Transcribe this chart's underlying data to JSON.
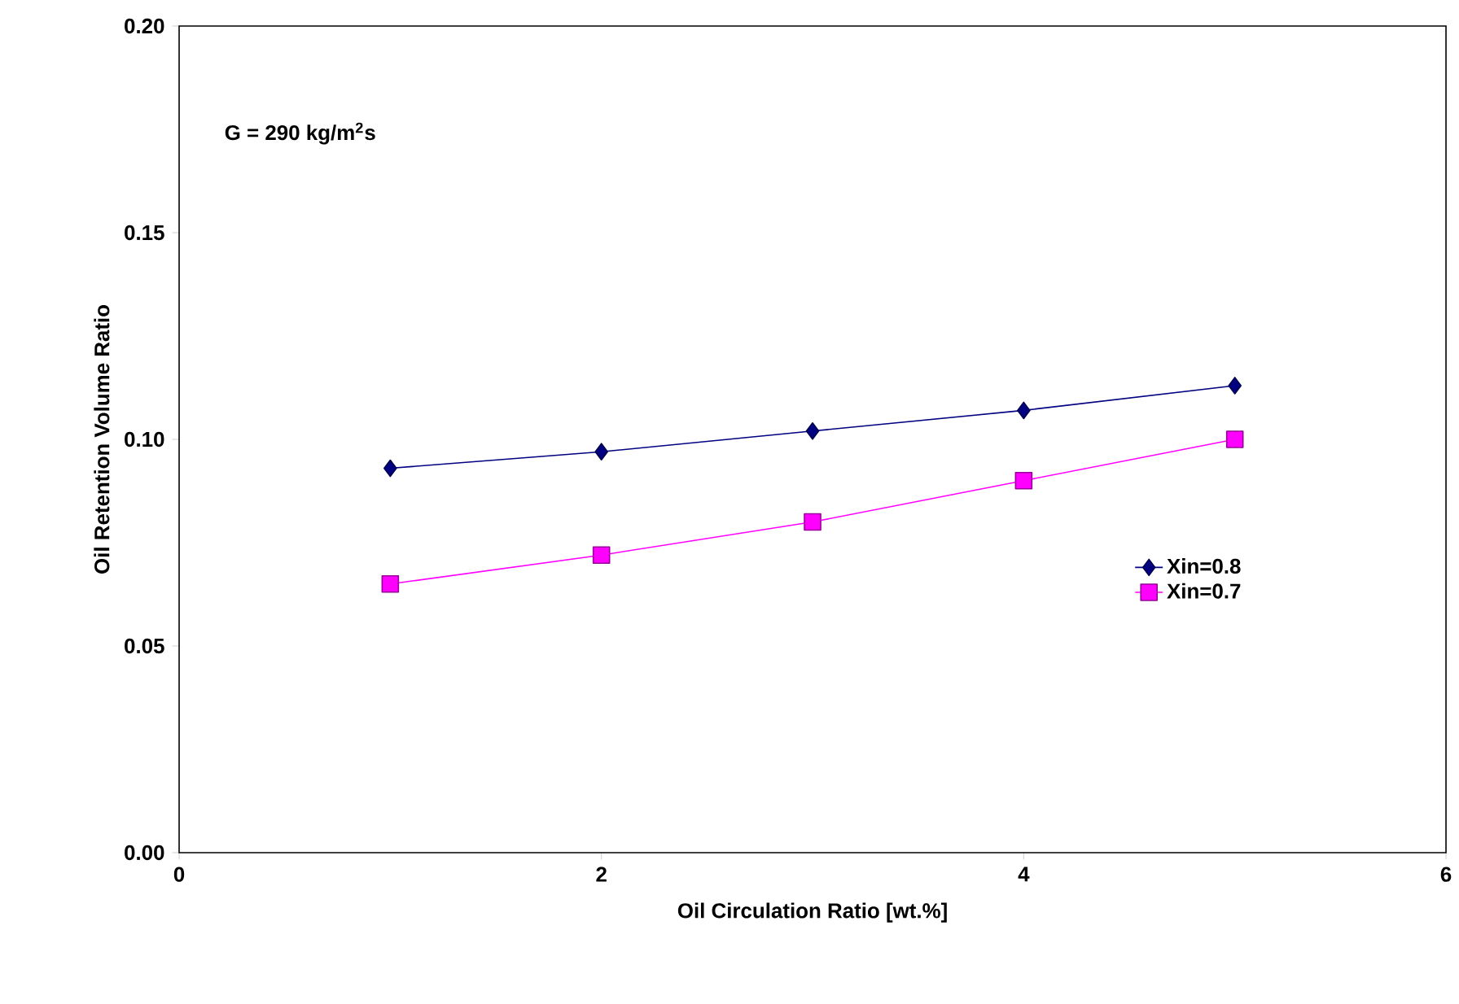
{
  "chart_data": {
    "type": "line",
    "xlabel": "Oil Circulation Ratio [wt.%]",
    "ylabel": "Oil Retention Volume Ratio",
    "annotations": [
      "G = 290 kg/m$^{2}$s"
    ],
    "x": [
      1,
      2,
      3,
      4,
      5
    ],
    "series": [
      {
        "name": "Xin=0.8",
        "color": "#000080",
        "marker": "diamond",
        "values": [
          0.093,
          0.097,
          0.102,
          0.107,
          0.113
        ]
      },
      {
        "name": "Xin=0.7",
        "color": "#ff00ff",
        "marker": "square",
        "values": [
          0.065,
          0.072,
          0.08,
          0.09,
          0.1
        ]
      }
    ],
    "xlim": [
      0,
      6
    ],
    "xticks": [
      0,
      2,
      4,
      6
    ],
    "ylim": [
      0,
      0.2
    ],
    "yticks": [
      {
        "value": 0,
        "label": "0.00"
      },
      {
        "value": 0.05,
        "label": "0.05"
      },
      {
        "value": 0.1,
        "label": "0.10"
      },
      {
        "value": 0.15,
        "label": "0.15"
      },
      {
        "value": 0.2,
        "label": "0.20"
      }
    ],
    "grid": false,
    "legend": "right",
    "line_style": "solid"
  }
}
